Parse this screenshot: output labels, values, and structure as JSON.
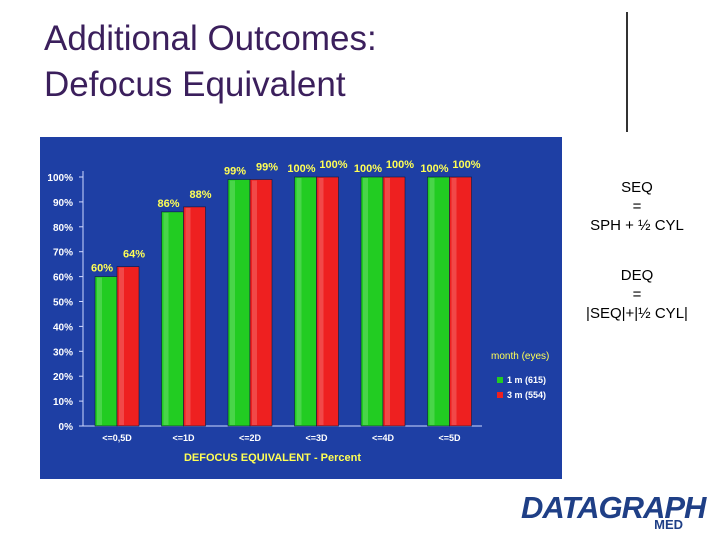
{
  "slide": {
    "title_line1": "Additional Outcomes:",
    "title_line2": "Defocus Equivalent",
    "seq": {
      "line1": "SEQ",
      "line2": "=",
      "line3": "SPH + ½ CYL"
    },
    "deq": {
      "line1": "DEQ",
      "line2": "=",
      "line3": "|SEQ|+|½ CYL|"
    },
    "logo": {
      "main": "DATAGRAPH",
      "sub": "MED"
    }
  },
  "colors": {
    "plot_background": "#1e3fa4",
    "series_1m": "#22cc22",
    "series_3m": "#ee2020",
    "label_text": "#ffff55",
    "axis_text": "#ffffff"
  },
  "chart_data": {
    "type": "bar",
    "categories": [
      "<=0,5D",
      "<=1D",
      "<=2D",
      "<=3D",
      "<=4D",
      "<=5D"
    ],
    "series": [
      {
        "name": "1 m (615)",
        "values": [
          60,
          86,
          99,
          100,
          100,
          100
        ],
        "labels": [
          "60%",
          "86%",
          "99%",
          "100%",
          "100%",
          "100%"
        ]
      },
      {
        "name": "3 m (554)",
        "values": [
          64,
          88,
          99,
          100,
          100,
          100
        ],
        "labels": [
          "64%",
          "88%",
          "99%",
          "100%",
          "100%",
          "100%"
        ]
      }
    ],
    "y_ticks": [
      "0%",
      "10%",
      "20%",
      "30%",
      "40%",
      "50%",
      "60%",
      "70%",
      "80%",
      "90%",
      "100%"
    ],
    "ylim": [
      0,
      100
    ],
    "xlabel": "DEFOCUS EQUIVALENT - Percent",
    "legend_title": "month (eyes)",
    "legend_position": "right",
    "grid": false
  }
}
